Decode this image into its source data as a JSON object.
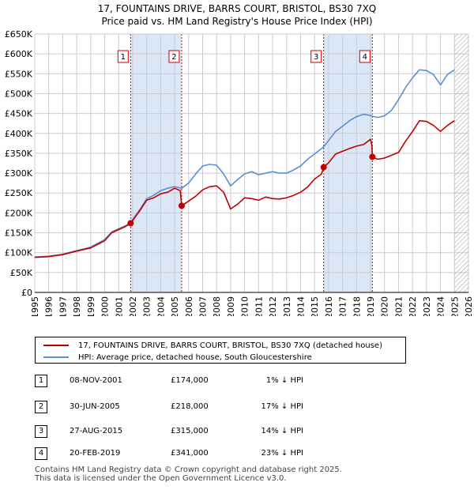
{
  "title": {
    "line1": "17, FOUNTAINS DRIVE, BARRS COURT, BRISTOL, BS30 7XQ",
    "line2": "Price paid vs. HM Land Registry's House Price Index (HPI)"
  },
  "colors": {
    "price_line": "#c00000",
    "hpi_line": "#5b8fd1",
    "shade": "#dbe6f7",
    "grid": "#cccccc",
    "marker_border": "#cc0000"
  },
  "legend": {
    "items": [
      {
        "label": "17, FOUNTAINS DRIVE, BARRS COURT, BRISTOL, BS30 7XQ (detached house)"
      },
      {
        "label": "HPI: Average price, detached house, South Gloucestershire"
      }
    ]
  },
  "sales": [
    {
      "num": "1",
      "date": "08-NOV-2001",
      "price": "£174,000",
      "hpi": "1% ↓ HPI"
    },
    {
      "num": "2",
      "date": "30-JUN-2005",
      "price": "£218,000",
      "hpi": "17% ↓ HPI"
    },
    {
      "num": "3",
      "date": "27-AUG-2015",
      "price": "£315,000",
      "hpi": "14% ↓ HPI"
    },
    {
      "num": "4",
      "date": "20-FEB-2019",
      "price": "£341,000",
      "hpi": "23% ↓ HPI"
    }
  ],
  "footer": {
    "line1": "Contains HM Land Registry data © Crown copyright and database right 2025.",
    "line2": "This data is licensed under the Open Government Licence v3.0."
  },
  "chart_data": {
    "type": "line",
    "title": "17, FOUNTAINS DRIVE, BARRS COURT, BRISTOL, BS30 7XQ — Price paid vs. HM Land Registry's House Price Index (HPI)",
    "xlabel": "",
    "ylabel": "",
    "xlim": [
      1995,
      2026
    ],
    "ylim": [
      0,
      650000
    ],
    "x_ticks": [
      "1995",
      "1996",
      "1997",
      "1998",
      "1999",
      "2000",
      "2001",
      "2002",
      "2003",
      "2004",
      "2005",
      "2006",
      "2007",
      "2008",
      "2009",
      "2010",
      "2011",
      "2012",
      "2013",
      "2014",
      "2015",
      "2016",
      "2017",
      "2018",
      "2019",
      "2020",
      "2021",
      "2022",
      "2023",
      "2024",
      "2025",
      "2026"
    ],
    "y_ticks": [
      {
        "value": 0,
        "label": "£0"
      },
      {
        "value": 50000,
        "label": "£50K"
      },
      {
        "value": 100000,
        "label": "£100K"
      },
      {
        "value": 150000,
        "label": "£150K"
      },
      {
        "value": 200000,
        "label": "£200K"
      },
      {
        "value": 250000,
        "label": "£250K"
      },
      {
        "value": 300000,
        "label": "£300K"
      },
      {
        "value": 350000,
        "label": "£350K"
      },
      {
        "value": 400000,
        "label": "£400K"
      },
      {
        "value": 450000,
        "label": "£450K"
      },
      {
        "value": 500000,
        "label": "£500K"
      },
      {
        "value": 550000,
        "label": "£550K"
      },
      {
        "value": 600000,
        "label": "£600K"
      },
      {
        "value": 650000,
        "label": "£650K"
      }
    ],
    "shaded_periods": [
      [
        2001.85,
        2005.5
      ],
      [
        2015.65,
        2019.13
      ]
    ],
    "future_hatch_start": 2025.0,
    "series": [
      {
        "name": "17, FOUNTAINS DRIVE, BARRS COURT, BRISTOL, BS30 7XQ (detached house)",
        "x": [
          1995.0,
          1996.0,
          1997.0,
          1998.0,
          1999.0,
          2000.0,
          2000.5,
          2001.0,
          2001.5,
          2001.85,
          2002.5,
          2003.0,
          2003.5,
          2004.0,
          2004.5,
          2005.0,
          2005.4,
          2005.5,
          2005.8,
          2006.5,
          2007.0,
          2007.5,
          2008.0,
          2008.5,
          2009.0,
          2009.5,
          2010.0,
          2010.5,
          2011.0,
          2011.5,
          2012.0,
          2012.5,
          2013.0,
          2013.5,
          2014.0,
          2014.5,
          2015.0,
          2015.5,
          2015.65,
          2016.0,
          2016.5,
          2017.0,
          2017.5,
          2018.0,
          2018.5,
          2019.0,
          2019.1,
          2019.13,
          2019.5,
          2020.0,
          2020.5,
          2021.0,
          2021.5,
          2022.0,
          2022.5,
          2023.0,
          2023.5,
          2024.0,
          2024.5,
          2025.0
        ],
        "values": [
          88000,
          90000,
          95000,
          104000,
          112000,
          130000,
          150000,
          158000,
          166000,
          174000,
          205000,
          232000,
          238000,
          248000,
          252000,
          262000,
          256000,
          218000,
          225000,
          242000,
          258000,
          266000,
          268000,
          252000,
          210000,
          222000,
          238000,
          236000,
          232000,
          240000,
          236000,
          235000,
          238000,
          244000,
          252000,
          265000,
          285000,
          298000,
          315000,
          326000,
          348000,
          355000,
          362000,
          368000,
          372000,
          385000,
          370000,
          341000,
          335000,
          338000,
          345000,
          352000,
          380000,
          405000,
          432000,
          430000,
          420000,
          405000,
          420000,
          432000
        ]
      },
      {
        "name": "HPI: Average price, detached house, South Gloucestershire",
        "x": [
          1995.0,
          1996.0,
          1997.0,
          1998.0,
          1999.0,
          2000.0,
          2000.5,
          2001.0,
          2001.5,
          2001.85,
          2002.5,
          2003.0,
          2003.5,
          2004.0,
          2004.5,
          2005.0,
          2005.5,
          2006.0,
          2006.5,
          2007.0,
          2007.5,
          2008.0,
          2008.5,
          2009.0,
          2009.5,
          2010.0,
          2010.5,
          2011.0,
          2011.5,
          2012.0,
          2012.5,
          2013.0,
          2013.5,
          2014.0,
          2014.5,
          2015.0,
          2015.65,
          2016.0,
          2016.5,
          2017.0,
          2017.5,
          2018.0,
          2018.5,
          2019.0,
          2019.13,
          2019.5,
          2020.0,
          2020.5,
          2021.0,
          2021.5,
          2022.0,
          2022.5,
          2023.0,
          2023.5,
          2024.0,
          2024.5,
          2025.0
        ],
        "values": [
          89000,
          91000,
          96000,
          105000,
          114000,
          133000,
          152000,
          160000,
          168000,
          176000,
          208000,
          236000,
          244000,
          256000,
          262000,
          266000,
          262000,
          275000,
          298000,
          318000,
          322000,
          320000,
          298000,
          268000,
          284000,
          298000,
          304000,
          296000,
          300000,
          304000,
          300000,
          300000,
          308000,
          318000,
          335000,
          348000,
          366000,
          382000,
          405000,
          418000,
          432000,
          442000,
          448000,
          445000,
          443000,
          440000,
          444000,
          458000,
          485000,
          515000,
          540000,
          560000,
          558000,
          548000,
          522000,
          548000,
          560000
        ]
      }
    ],
    "sale_points": [
      {
        "label": "1",
        "x": 2001.85,
        "value": 174000
      },
      {
        "label": "2",
        "x": 2005.5,
        "value": 218000
      },
      {
        "label": "3",
        "x": 2015.65,
        "value": 315000
      },
      {
        "label": "4",
        "x": 2019.13,
        "value": 341000
      }
    ]
  }
}
